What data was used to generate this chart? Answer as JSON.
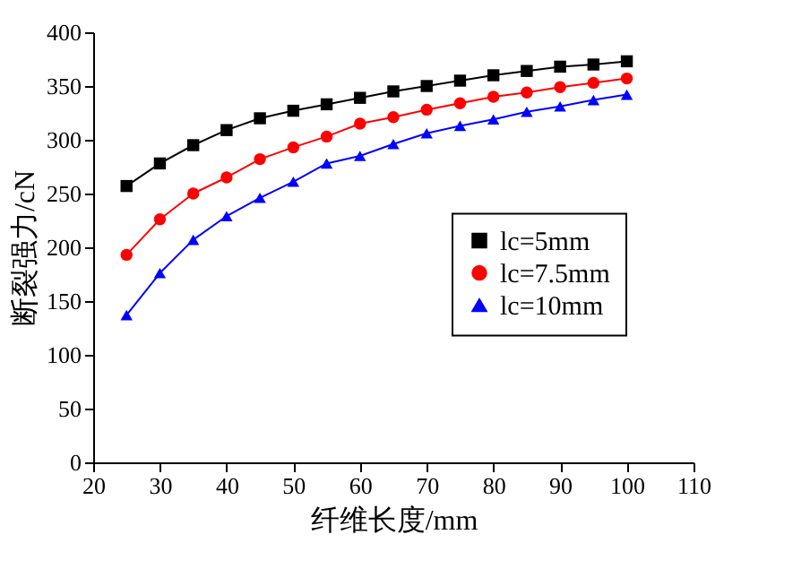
{
  "chart_data": {
    "type": "line",
    "xlabel": "纤维长度/mm",
    "ylabel": "断裂强力/cN",
    "x": [
      25,
      30,
      35,
      40,
      45,
      50,
      55,
      60,
      65,
      70,
      75,
      80,
      85,
      90,
      95,
      100
    ],
    "series": [
      {
        "name": "lc=5mm",
        "color": "#000000",
        "marker": "square",
        "values": [
          257,
          278,
          295,
          309,
          320,
          327,
          333,
          339,
          345,
          350,
          355,
          360,
          364,
          368,
          370,
          373
        ]
      },
      {
        "name": "lc=7.5mm",
        "color": "#ff0000",
        "marker": "circle",
        "values": [
          193,
          226,
          250,
          265,
          282,
          293,
          303,
          315,
          321,
          328,
          334,
          340,
          344,
          349,
          353,
          357
        ]
      },
      {
        "name": "lc=10mm",
        "color": "#0000ff",
        "marker": "triangle",
        "values": [
          137,
          176,
          207,
          229,
          246,
          261,
          278,
          285,
          296,
          306,
          313,
          319,
          326,
          331,
          337,
          342
        ]
      }
    ],
    "xlim": [
      20,
      110
    ],
    "xticks": [
      20,
      30,
      40,
      50,
      60,
      70,
      80,
      90,
      100,
      110
    ],
    "ylim": [
      0,
      400
    ],
    "yticks": [
      0,
      50,
      100,
      150,
      200,
      250,
      300,
      350,
      400
    ],
    "grid": false,
    "legend": "right",
    "line_style": "solid"
  }
}
